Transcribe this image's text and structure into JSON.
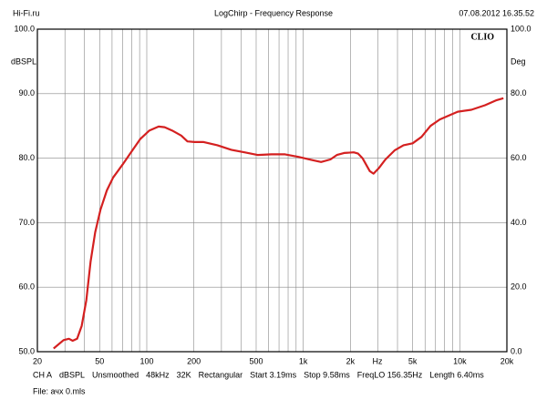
{
  "header": {
    "site": "Hi-Fi.ru",
    "timestamp": "07.08.2012 16.35.52"
  },
  "chart_data": {
    "type": "line",
    "title": "LogChirp - Frequency Response",
    "brand": "CLIO",
    "y_label": "dBSPL",
    "y2_label": "Deg",
    "x_label": "Hz",
    "log_x": true,
    "grid": true,
    "xlim": [
      20,
      20000
    ],
    "ylim": [
      50,
      100
    ],
    "y2lim": [
      0,
      100
    ],
    "xticks": [
      20,
      50,
      100,
      200,
      500,
      {
        "value": 1000,
        "label": "1k"
      },
      {
        "value": 2000,
        "label": "2k"
      },
      {
        "value": 5000,
        "label": "5k"
      },
      {
        "value": 10000,
        "label": "10k"
      },
      {
        "value": 20000,
        "label": "20k"
      }
    ],
    "x_minor_ticks": [
      30,
      40,
      60,
      70,
      80,
      90,
      300,
      400,
      600,
      700,
      800,
      900,
      3000,
      4000,
      6000,
      7000,
      8000,
      9000
    ],
    "yticks": [
      {
        "value": 50,
        "label": "50.0"
      },
      {
        "value": 60,
        "label": "60.0"
      },
      {
        "value": 70,
        "label": "70.0"
      },
      {
        "value": 80,
        "label": "80.0"
      },
      {
        "value": 90,
        "label": "90.0"
      },
      {
        "value": 100,
        "label": "100.0"
      }
    ],
    "y2ticks": [
      {
        "value": 0,
        "label": "0.0"
      },
      {
        "value": 20,
        "label": "20.0"
      },
      {
        "value": 40,
        "label": "40.0"
      },
      {
        "value": 60,
        "label": "60.0"
      },
      {
        "value": 80,
        "label": "80.0"
      },
      {
        "value": 100,
        "label": "100.0"
      }
    ],
    "series": [
      {
        "name": "Frequency Response",
        "color": "#d42020",
        "x": [
          25.4,
          29.4,
          31.8,
          33.6,
          35.9,
          38.4,
          41.1,
          43.8,
          46.8,
          50.6,
          55.6,
          61,
          70,
          79.8,
          91,
          104,
          119,
          130,
          145,
          166,
          182,
          202,
          231,
          283,
          347,
          421,
          510,
          626,
          764,
          932,
          1140,
          1300,
          1490,
          1640,
          1825,
          2100,
          2240,
          2390,
          2660,
          2810,
          3050,
          3350,
          3830,
          4370,
          5000,
          5700,
          6500,
          7450,
          8500,
          9700,
          11850,
          14500,
          17200,
          19000
        ],
        "values": [
          50.5,
          51.8,
          52.0,
          51.7,
          52.0,
          54,
          58,
          64,
          68.5,
          72,
          75,
          77,
          79,
          81,
          83,
          84.3,
          84.9,
          84.8,
          84.3,
          83.5,
          82.6,
          82.5,
          82.5,
          82.0,
          81.3,
          80.9,
          80.5,
          80.6,
          80.6,
          80.2,
          79.7,
          79.4,
          79.8,
          80.5,
          80.8,
          80.9,
          80.7,
          80.0,
          78,
          77.6,
          78.5,
          79.8,
          81.2,
          82,
          82.3,
          83.3,
          85,
          86,
          86.6,
          87.2,
          87.5,
          88.2,
          89,
          89.3
        ]
      }
    ]
  },
  "footer": {
    "items": [
      "CH A",
      "dBSPL",
      "Unsmoothed",
      "48kHz",
      "32K",
      "Rectangular",
      "Start 3.19ms",
      "Stop 9.58ms",
      "FreqLO 156.35Hz",
      "Length 6.40ms"
    ],
    "file": "File: ачх 0.mls"
  }
}
